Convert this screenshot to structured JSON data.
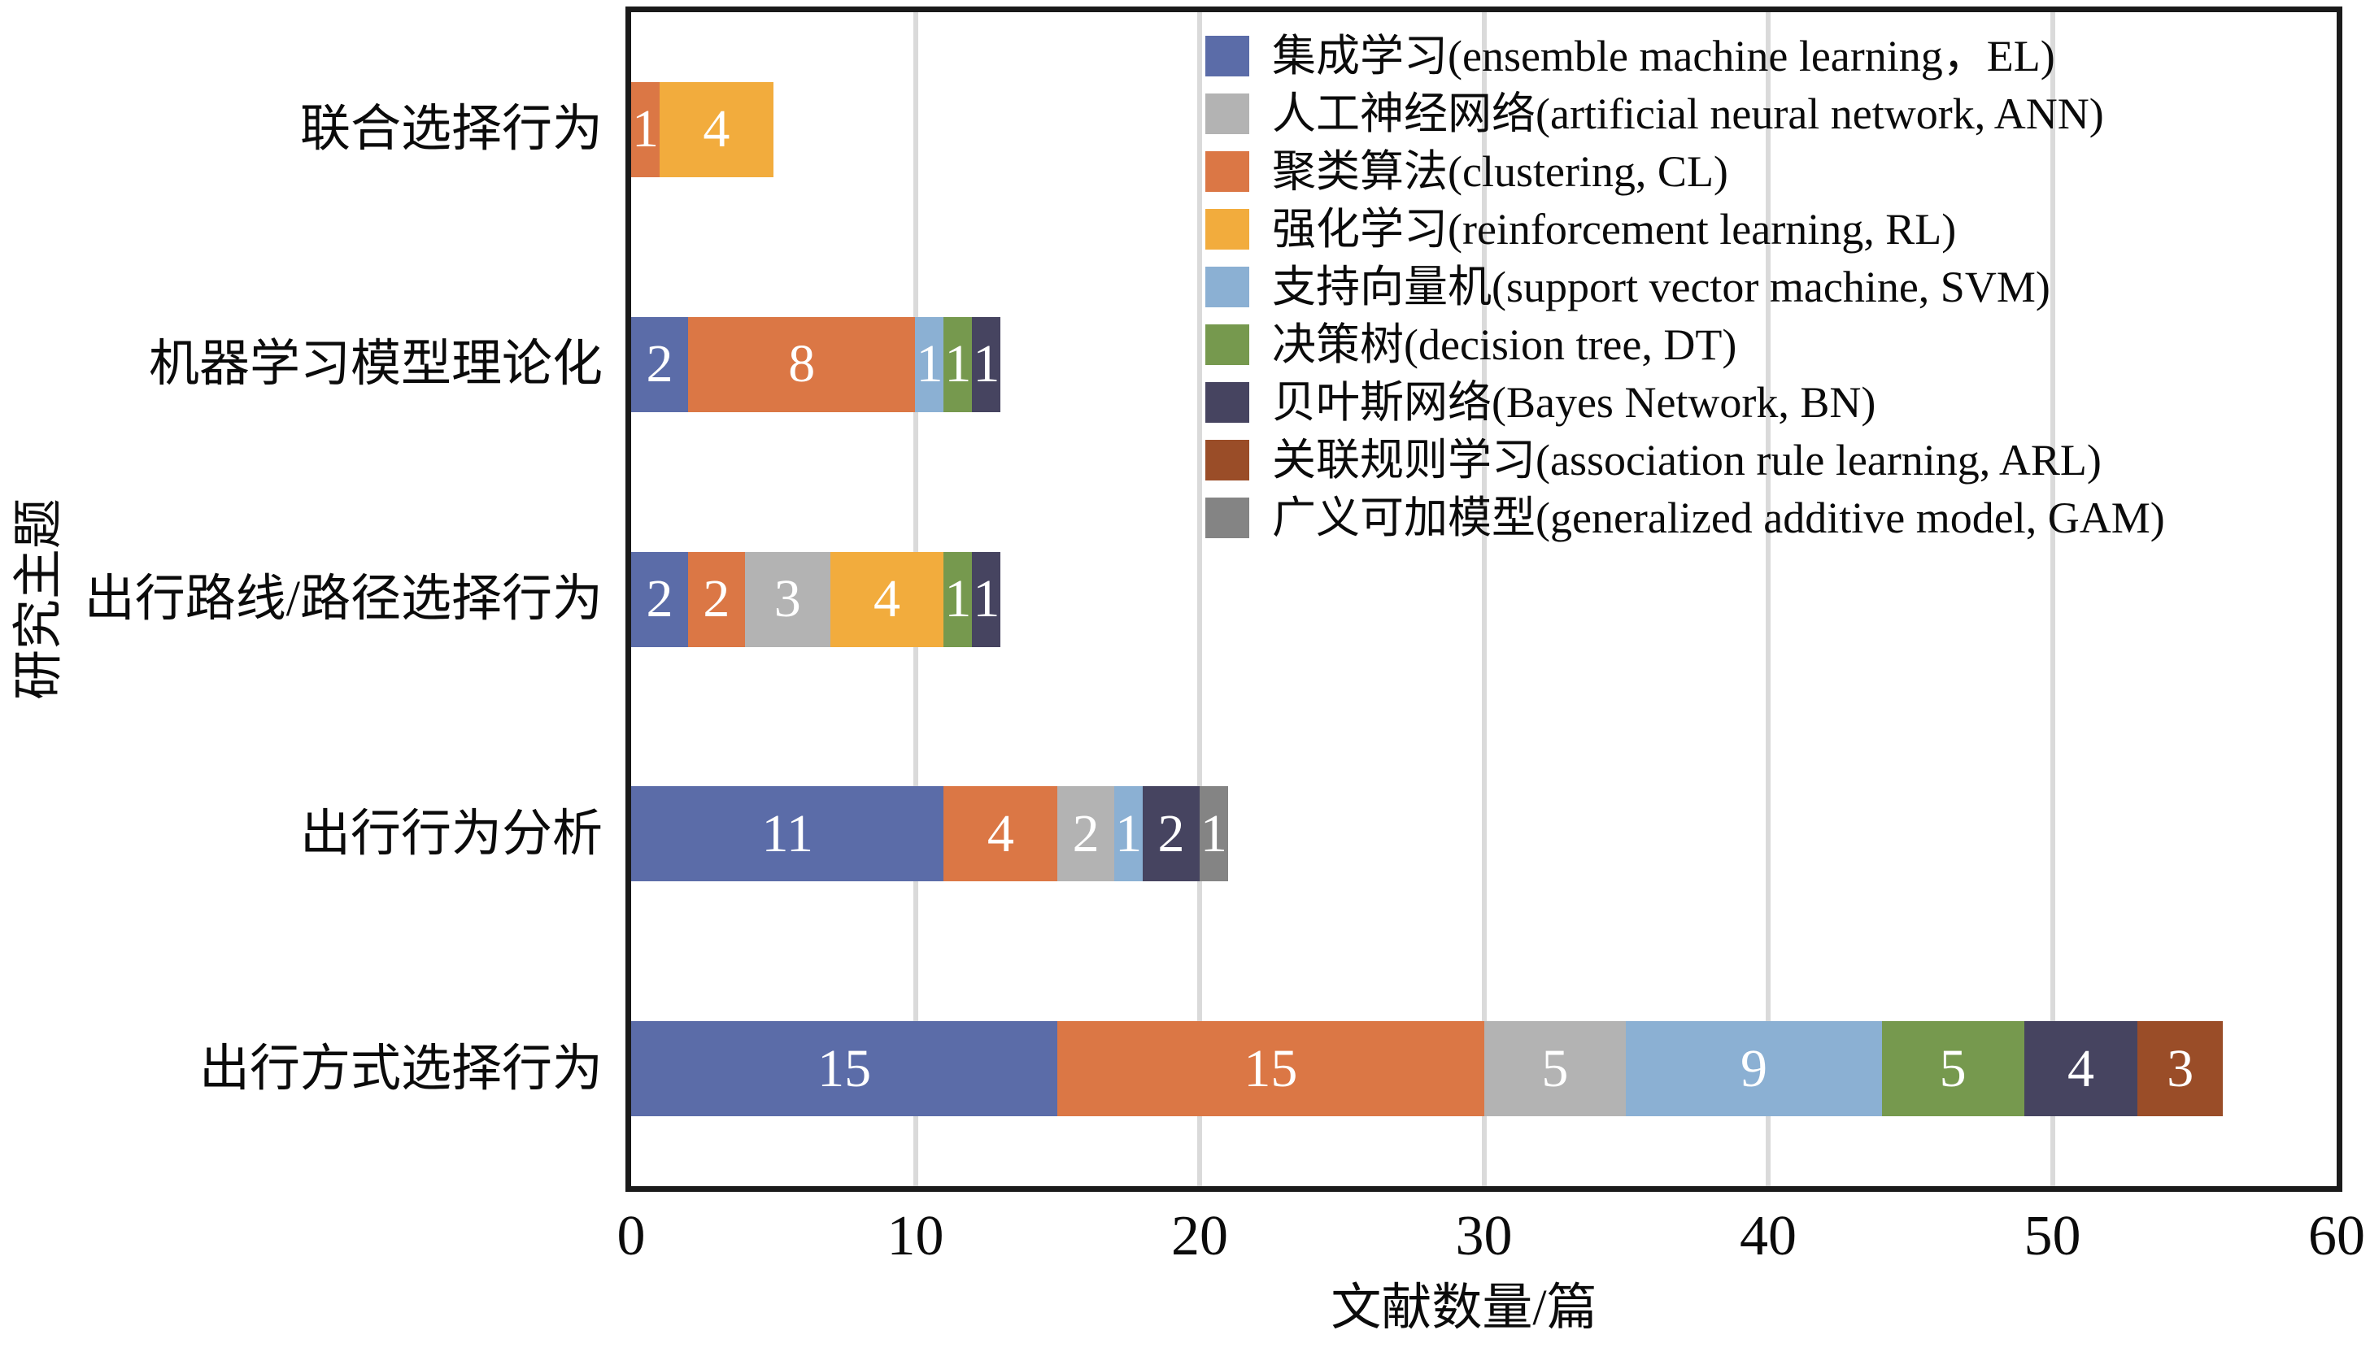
{
  "chart_data": {
    "type": "bar",
    "orientation": "horizontal-stacked",
    "title": "",
    "xlabel": "文献数量/篇",
    "ylabel": "研究主题",
    "xlim": [
      0,
      60
    ],
    "xticks": [
      0,
      10,
      20,
      30,
      40,
      50,
      60
    ],
    "grid": "vertical",
    "legend_position": "top-right",
    "value_label_color": "#ffffff",
    "categories": [
      "联合选择行为",
      "机器学习模型理论化",
      "出行路线/路径选择行为",
      "出行行为分析",
      "出行方式选择行为"
    ],
    "series": [
      {
        "key": "EL",
        "label": "集成学习(ensemble machine learning，EL)",
        "color": "#5B6CA8"
      },
      {
        "key": "ANN",
        "label": "人工神经网络(artificial neural network, ANN)",
        "color": "#B3B3B3"
      },
      {
        "key": "CL",
        "label": "聚类算法(clustering, CL)",
        "color": "#DB7745"
      },
      {
        "key": "RL",
        "label": "强化学习(reinforcement learning, RL)",
        "color": "#F2AC3D"
      },
      {
        "key": "SVM",
        "label": "支持向量机(support vector machine, SVM)",
        "color": "#8BB0D3"
      },
      {
        "key": "DT",
        "label": "决策树(decision tree, DT)",
        "color": "#76994E"
      },
      {
        "key": "BN",
        "label": "贝叶斯网络(Bayes Network, BN)",
        "color": "#464460"
      },
      {
        "key": "ARL",
        "label": "关联规则学习(association rule learning, ARL)",
        "color": "#9A4D28"
      },
      {
        "key": "GAM",
        "label": "广义可加模型(generalized additive model, GAM)",
        "color": "#848484"
      }
    ],
    "rows": [
      {
        "category": "联合选择行为",
        "segments": [
          {
            "series": "CL",
            "value": 1
          },
          {
            "series": "RL",
            "value": 4
          }
        ]
      },
      {
        "category": "机器学习模型理论化",
        "segments": [
          {
            "series": "EL",
            "value": 2
          },
          {
            "series": "CL",
            "value": 8
          },
          {
            "series": "SVM",
            "value": 1
          },
          {
            "series": "DT",
            "value": 1
          },
          {
            "series": "BN",
            "value": 1
          }
        ]
      },
      {
        "category": "出行路线/路径选择行为",
        "segments": [
          {
            "series": "EL",
            "value": 2
          },
          {
            "series": "CL",
            "value": 2
          },
          {
            "series": "ANN",
            "value": 3
          },
          {
            "series": "RL",
            "value": 4
          },
          {
            "series": "DT",
            "value": 1
          },
          {
            "series": "BN",
            "value": 1
          }
        ]
      },
      {
        "category": "出行行为分析",
        "segments": [
          {
            "series": "EL",
            "value": 11
          },
          {
            "series": "CL",
            "value": 4
          },
          {
            "series": "ANN",
            "value": 2
          },
          {
            "series": "SVM",
            "value": 1
          },
          {
            "series": "BN",
            "value": 2
          },
          {
            "series": "GAM",
            "value": 1
          }
        ]
      },
      {
        "category": "出行方式选择行为",
        "segments": [
          {
            "series": "EL",
            "value": 15
          },
          {
            "series": "CL",
            "value": 15
          },
          {
            "series": "ANN",
            "value": 5
          },
          {
            "series": "SVM",
            "value": 9
          },
          {
            "series": "DT",
            "value": 5
          },
          {
            "series": "BN",
            "value": 4
          },
          {
            "series": "ARL",
            "value": 3
          }
        ]
      }
    ]
  }
}
